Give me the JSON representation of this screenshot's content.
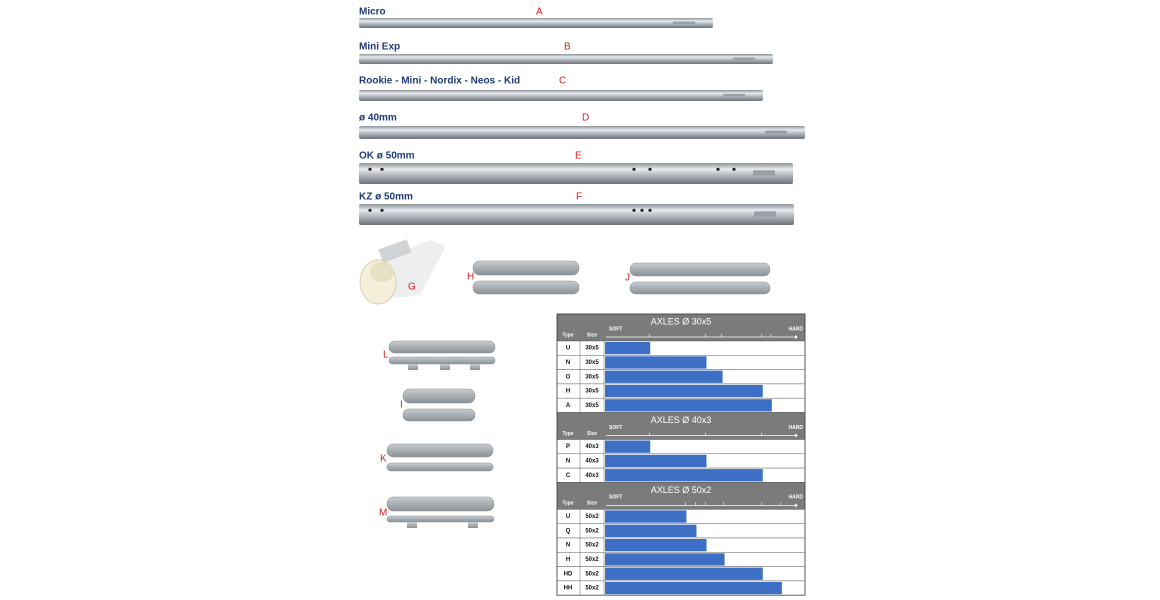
{
  "axles": [
    {
      "label": "Micro",
      "letter": "A"
    },
    {
      "label": "Mini Exp",
      "letter": "B"
    },
    {
      "label": "Rookie - Mini - Nordix - Neos - Kid",
      "letter": "C"
    },
    {
      "label": "ø 40mm",
      "letter": "D"
    },
    {
      "label": "OK ø 50mm",
      "letter": "E"
    },
    {
      "label": "KZ ø 50mm",
      "letter": "F"
    }
  ],
  "part_letters": [
    "G",
    "H",
    "J",
    "L",
    "I",
    "K",
    "M"
  ],
  "table": {
    "type_header": "Type",
    "size_header": "Size",
    "soft": "SOFT",
    "hard": "HARD",
    "sections": [
      {
        "title": "AXLES Ø 30x5",
        "rows": [
          {
            "type": "U",
            "size": "30x5",
            "stiffness": 22.5
          },
          {
            "type": "N",
            "size": "30x5",
            "stiffness": 50.5
          },
          {
            "type": "O",
            "size": "30x5",
            "stiffness": 58.5
          },
          {
            "type": "H",
            "size": "30x5",
            "stiffness": 78.5
          },
          {
            "type": "A",
            "size": "30x5",
            "stiffness": 83
          }
        ]
      },
      {
        "title": "AXLES Ø 40x3",
        "rows": [
          {
            "type": "P",
            "size": "40x3",
            "stiffness": 22.5
          },
          {
            "type": "N",
            "size": "40x3",
            "stiffness": 50.5
          },
          {
            "type": "C",
            "size": "40x3",
            "stiffness": 78.5
          }
        ]
      },
      {
        "title": "AXLES Ø 50x2",
        "rows": [
          {
            "type": "U",
            "size": "50x2",
            "stiffness": 40.5
          },
          {
            "type": "Q",
            "size": "50x2",
            "stiffness": 45.5
          },
          {
            "type": "N",
            "size": "50x2",
            "stiffness": 50.5
          },
          {
            "type": "H",
            "size": "50x2",
            "stiffness": 59.5
          },
          {
            "type": "HD",
            "size": "50x2",
            "stiffness": 78.5
          },
          {
            "type": "HH",
            "size": "50x2",
            "stiffness": 88
          }
        ]
      }
    ]
  }
}
